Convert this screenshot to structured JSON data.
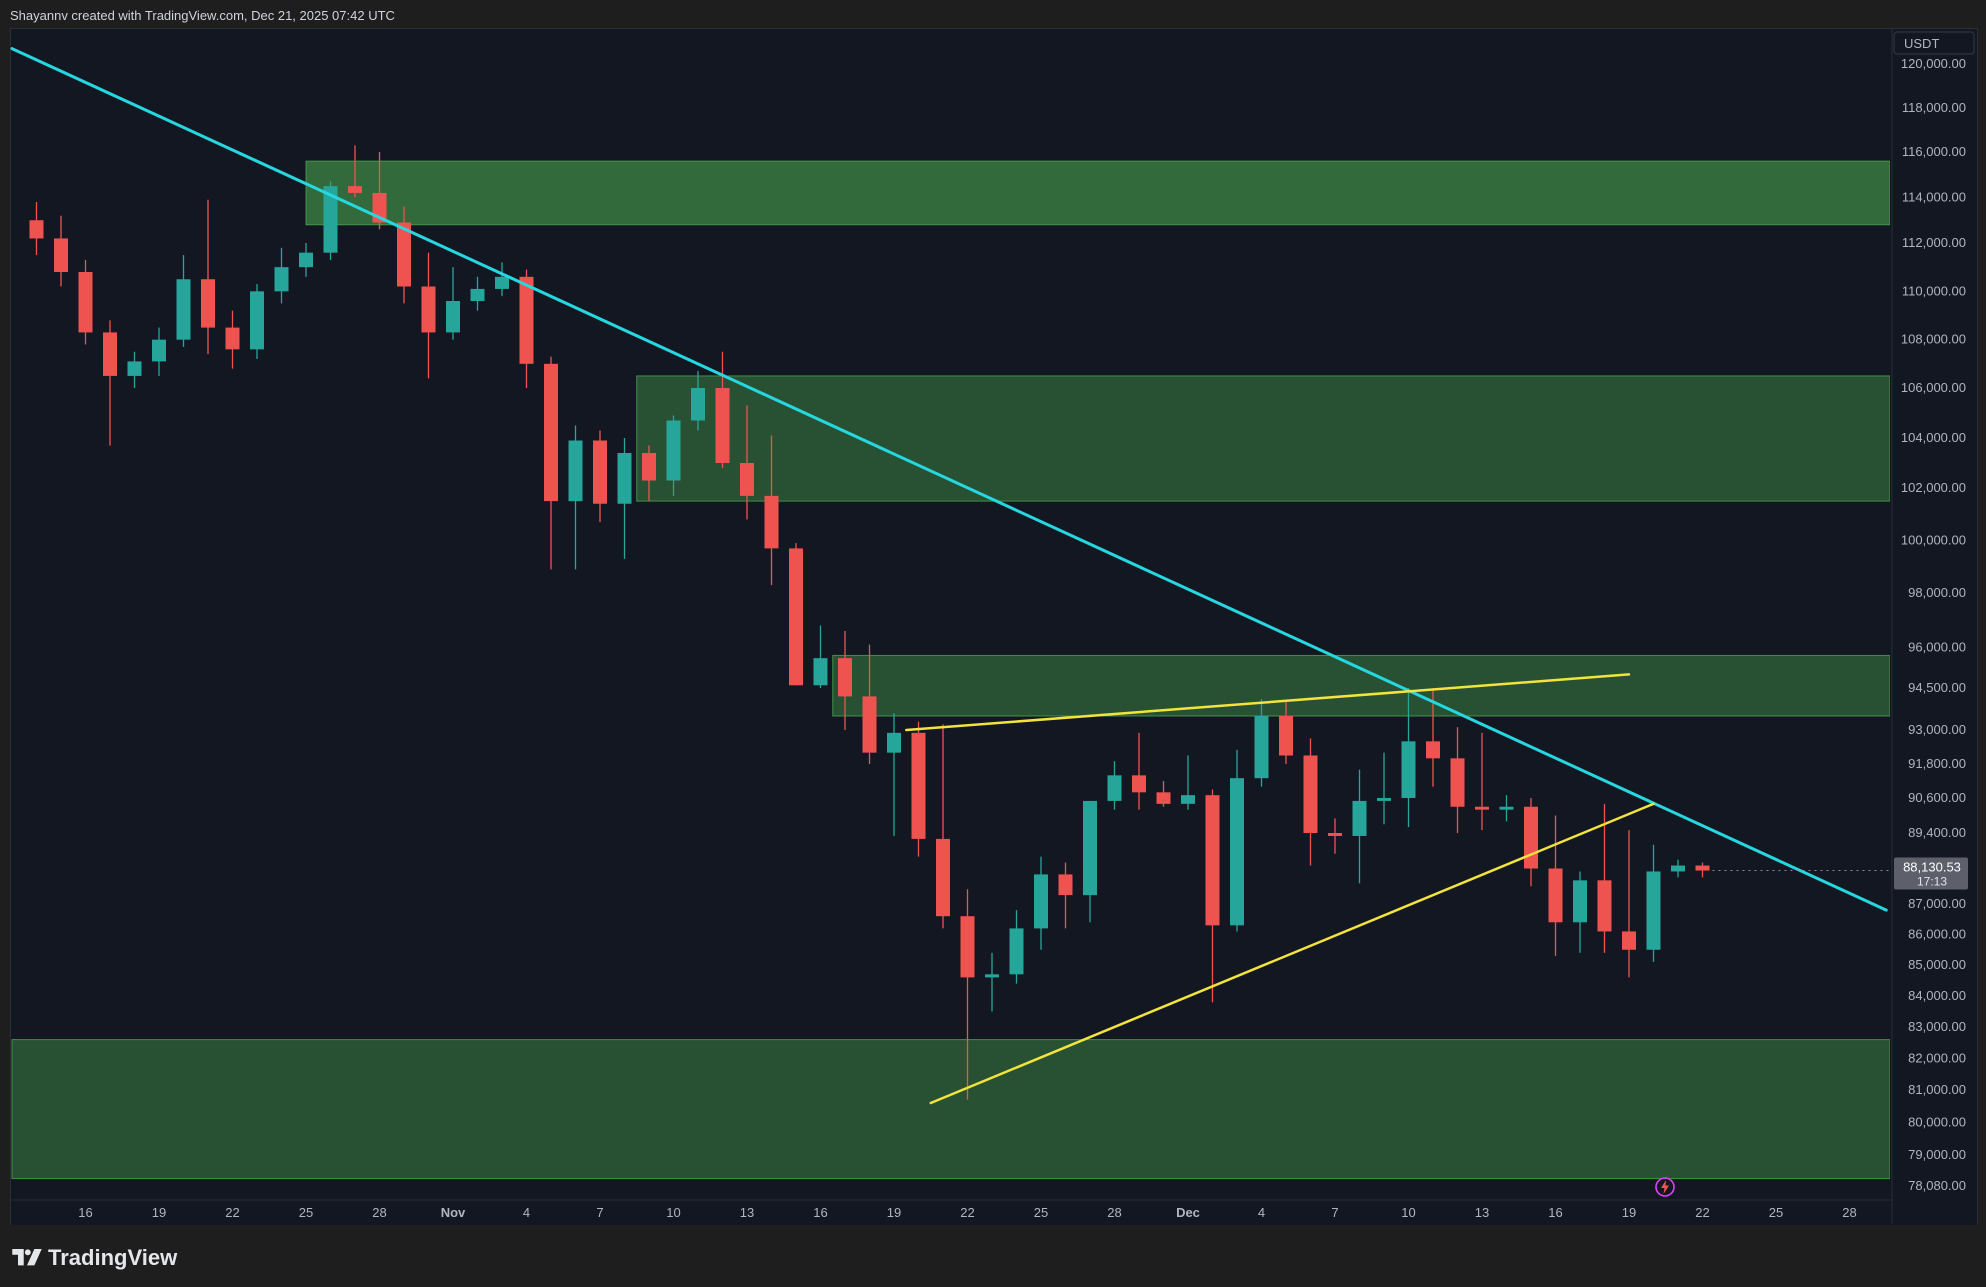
{
  "header": {
    "attribution": "Shayannv created with TradingView.com, Dec 21, 2025 07:42 UTC"
  },
  "footer": {
    "brand": "TradingView"
  },
  "colors": {
    "background": "#131722",
    "candle_up": "#26a69a",
    "candle_down": "#ef5350",
    "trendline": "#26d7e0",
    "triangle": "#f2e33d",
    "zone_fill": "#4caf50",
    "price_tag_bg": "#5d606b"
  },
  "icons": {
    "bolt": "lightning-icon",
    "brand": "tradingview-logo"
  },
  "chart_data": {
    "type": "candlestick",
    "title": "",
    "currency_label": "USDT",
    "last_price": "88,130.53",
    "countdown": "17:13",
    "ylim": [
      77500,
      121500
    ],
    "y_tick_labels": [
      "120,000.00",
      "118,000.00",
      "116,000.00",
      "114,000.00",
      "112,000.00",
      "110,000.00",
      "108,000.00",
      "106,000.00",
      "104,000.00",
      "102,000.00",
      "100,000.00",
      "98,000.00",
      "96,000.00",
      "94,500.00",
      "93,000.00",
      "91,800.00",
      "90,600.00",
      "89,400.00",
      "87,000.00",
      "86,000.00",
      "85,000.00",
      "84,000.00",
      "83,000.00",
      "82,000.00",
      "81,000.00",
      "80,000.00",
      "79,000.00",
      "78,080.00"
    ],
    "x_tick_labels": [
      "16",
      "19",
      "22",
      "25",
      "28",
      "Nov",
      "4",
      "7",
      "10",
      "13",
      "16",
      "19",
      "22",
      "25",
      "28",
      "Dec",
      "4",
      "7",
      "10",
      "13",
      "16",
      "19",
      "22",
      "25",
      "28"
    ],
    "zones": [
      {
        "from_day": 12,
        "to_day": 90,
        "low": 112800,
        "high": 115600
      },
      {
        "from_day": 25.5,
        "to_day": 90,
        "low": 101500,
        "high": 106500
      },
      {
        "from_day": 33.5,
        "to_day": 90,
        "low": 93500,
        "high": 95700
      },
      {
        "from_day": 0,
        "to_day": 90,
        "low": 78300,
        "high": 82600
      }
    ],
    "trendlines": [
      {
        "kind": "descending",
        "points": [
          [
            0,
            120700
          ],
          [
            76.5,
            86800
          ]
        ]
      },
      {
        "kind": "triangle-upper",
        "points": [
          [
            36.5,
            93000
          ],
          [
            66,
            95000
          ]
        ]
      },
      {
        "kind": "triangle-lower",
        "points": [
          [
            37.5,
            80600
          ],
          [
            67,
            90400
          ]
        ]
      }
    ],
    "ohlc_daily": [
      {
        "date": "Oct 14",
        "o": 113000,
        "h": 113800,
        "l": 111500,
        "c": 112200
      },
      {
        "date": "Oct 15",
        "o": 112200,
        "h": 113200,
        "l": 110200,
        "c": 110800
      },
      {
        "date": "Oct 16",
        "o": 110800,
        "h": 111300,
        "l": 107800,
        "c": 108300
      },
      {
        "date": "Oct 17",
        "o": 108300,
        "h": 108800,
        "l": 103700,
        "c": 106500
      },
      {
        "date": "Oct 18",
        "o": 106500,
        "h": 107500,
        "l": 106000,
        "c": 107100
      },
      {
        "date": "Oct 19",
        "o": 107100,
        "h": 108500,
        "l": 106500,
        "c": 108000
      },
      {
        "date": "Oct 20",
        "o": 108000,
        "h": 111500,
        "l": 107700,
        "c": 110500
      },
      {
        "date": "Oct 21",
        "o": 110500,
        "h": 113900,
        "l": 107400,
        "c": 108500
      },
      {
        "date": "Oct 22",
        "o": 108500,
        "h": 109200,
        "l": 106800,
        "c": 107600
      },
      {
        "date": "Oct 23",
        "o": 107600,
        "h": 110300,
        "l": 107200,
        "c": 110000
      },
      {
        "date": "Oct 24",
        "o": 110000,
        "h": 111800,
        "l": 109500,
        "c": 111000
      },
      {
        "date": "Oct 25",
        "o": 111000,
        "h": 112000,
        "l": 110600,
        "c": 111600
      },
      {
        "date": "Oct 26",
        "o": 111600,
        "h": 114700,
        "l": 111300,
        "c": 114500
      },
      {
        "date": "Oct 27",
        "o": 114500,
        "h": 116300,
        "l": 114000,
        "c": 114200
      },
      {
        "date": "Oct 28",
        "o": 114200,
        "h": 116000,
        "l": 112600,
        "c": 112900
      },
      {
        "date": "Oct 29",
        "o": 112900,
        "h": 113600,
        "l": 109500,
        "c": 110200
      },
      {
        "date": "Oct 30",
        "o": 110200,
        "h": 111600,
        "l": 106400,
        "c": 108300
      },
      {
        "date": "Oct 31",
        "o": 108300,
        "h": 111000,
        "l": 108000,
        "c": 109600
      },
      {
        "date": "Nov 1",
        "o": 109600,
        "h": 110600,
        "l": 109200,
        "c": 110100
      },
      {
        "date": "Nov 2",
        "o": 110100,
        "h": 111200,
        "l": 109800,
        "c": 110600
      },
      {
        "date": "Nov 3",
        "o": 110600,
        "h": 110900,
        "l": 106000,
        "c": 107000
      },
      {
        "date": "Nov 4",
        "o": 107000,
        "h": 107300,
        "l": 98900,
        "c": 101500
      },
      {
        "date": "Nov 5",
        "o": 101500,
        "h": 104500,
        "l": 98900,
        "c": 103900
      },
      {
        "date": "Nov 6",
        "o": 103900,
        "h": 104300,
        "l": 100700,
        "c": 101400
      },
      {
        "date": "Nov 7",
        "o": 101400,
        "h": 104000,
        "l": 99300,
        "c": 103400
      },
      {
        "date": "Nov 8",
        "o": 103400,
        "h": 103700,
        "l": 101500,
        "c": 102300
      },
      {
        "date": "Nov 9",
        "o": 102300,
        "h": 104900,
        "l": 101700,
        "c": 104700
      },
      {
        "date": "Nov 10",
        "o": 104700,
        "h": 106700,
        "l": 104300,
        "c": 106000
      },
      {
        "date": "Nov 11",
        "o": 106000,
        "h": 107500,
        "l": 102800,
        "c": 103000
      },
      {
        "date": "Nov 12",
        "o": 103000,
        "h": 105300,
        "l": 100800,
        "c": 101700
      },
      {
        "date": "Nov 13",
        "o": 101700,
        "h": 104100,
        "l": 98300,
        "c": 99700
      },
      {
        "date": "Nov 14",
        "o": 99700,
        "h": 99900,
        "l": 94600,
        "c": 94600
      },
      {
        "date": "Nov 15",
        "o": 94600,
        "h": 96800,
        "l": 94500,
        "c": 95600
      },
      {
        "date": "Nov 16",
        "o": 95600,
        "h": 96600,
        "l": 93000,
        "c": 94200
      },
      {
        "date": "Nov 17",
        "o": 94200,
        "h": 96100,
        "l": 91800,
        "c": 92200
      },
      {
        "date": "Nov 18",
        "o": 92200,
        "h": 93600,
        "l": 89300,
        "c": 92900
      },
      {
        "date": "Nov 19",
        "o": 92900,
        "h": 93300,
        "l": 88600,
        "c": 89200
      },
      {
        "date": "Nov 20",
        "o": 89200,
        "h": 93200,
        "l": 86200,
        "c": 86600
      },
      {
        "date": "Nov 21",
        "o": 86600,
        "h": 87500,
        "l": 80700,
        "c": 84600
      },
      {
        "date": "Nov 22",
        "o": 84600,
        "h": 85400,
        "l": 83500,
        "c": 84700
      },
      {
        "date": "Nov 23",
        "o": 84700,
        "h": 86800,
        "l": 84400,
        "c": 86200
      },
      {
        "date": "Nov 24",
        "o": 86200,
        "h": 88600,
        "l": 85500,
        "c": 88000
      },
      {
        "date": "Nov 25",
        "o": 88000,
        "h": 88400,
        "l": 86200,
        "c": 87300
      },
      {
        "date": "Nov 26",
        "o": 87300,
        "h": 90500,
        "l": 86400,
        "c": 90500
      },
      {
        "date": "Nov 27",
        "o": 90500,
        "h": 91900,
        "l": 90200,
        "c": 91400
      },
      {
        "date": "Nov 28",
        "o": 91400,
        "h": 92900,
        "l": 90200,
        "c": 90800
      },
      {
        "date": "Nov 29",
        "o": 90800,
        "h": 91200,
        "l": 90300,
        "c": 90400
      },
      {
        "date": "Nov 30",
        "o": 90400,
        "h": 92100,
        "l": 90200,
        "c": 90700
      },
      {
        "date": "Dec 1",
        "o": 90700,
        "h": 90900,
        "l": 83800,
        "c": 86300
      },
      {
        "date": "Dec 2",
        "o": 86300,
        "h": 92300,
        "l": 86100,
        "c": 91300
      },
      {
        "date": "Dec 3",
        "o": 91300,
        "h": 94100,
        "l": 91000,
        "c": 93500
      },
      {
        "date": "Dec 4",
        "o": 93500,
        "h": 94000,
        "l": 91800,
        "c": 92100
      },
      {
        "date": "Dec 5",
        "o": 92100,
        "h": 92700,
        "l": 88300,
        "c": 89400
      },
      {
        "date": "Dec 6",
        "o": 89400,
        "h": 89900,
        "l": 88700,
        "c": 89300
      },
      {
        "date": "Dec 7",
        "o": 89300,
        "h": 91600,
        "l": 87700,
        "c": 90500
      },
      {
        "date": "Dec 8",
        "o": 90500,
        "h": 92200,
        "l": 89700,
        "c": 90600
      },
      {
        "date": "Dec 9",
        "o": 90600,
        "h": 94500,
        "l": 89600,
        "c": 92600
      },
      {
        "date": "Dec 10",
        "o": 92600,
        "h": 94500,
        "l": 91000,
        "c": 92000
      },
      {
        "date": "Dec 11",
        "o": 92000,
        "h": 93100,
        "l": 89400,
        "c": 90300
      },
      {
        "date": "Dec 12",
        "o": 90300,
        "h": 92900,
        "l": 89500,
        "c": 90200
      },
      {
        "date": "Dec 13",
        "o": 90200,
        "h": 90700,
        "l": 89800,
        "c": 90300
      },
      {
        "date": "Dec 14",
        "o": 90300,
        "h": 90600,
        "l": 87600,
        "c": 88200
      },
      {
        "date": "Dec 15",
        "o": 88200,
        "h": 90000,
        "l": 85300,
        "c": 86400
      },
      {
        "date": "Dec 16",
        "o": 86400,
        "h": 88100,
        "l": 85400,
        "c": 87800
      },
      {
        "date": "Dec 17",
        "o": 87800,
        "h": 90400,
        "l": 85400,
        "c": 86100
      },
      {
        "date": "Dec 18",
        "o": 86100,
        "h": 89500,
        "l": 84600,
        "c": 85500
      },
      {
        "date": "Dec 19",
        "o": 85500,
        "h": 89000,
        "l": 85100,
        "c": 88100
      },
      {
        "date": "Dec 20",
        "o": 88100,
        "h": 88500,
        "l": 87900,
        "c": 88300
      },
      {
        "date": "Dec 21",
        "o": 88300,
        "h": 88400,
        "l": 87900,
        "c": 88130
      }
    ]
  }
}
